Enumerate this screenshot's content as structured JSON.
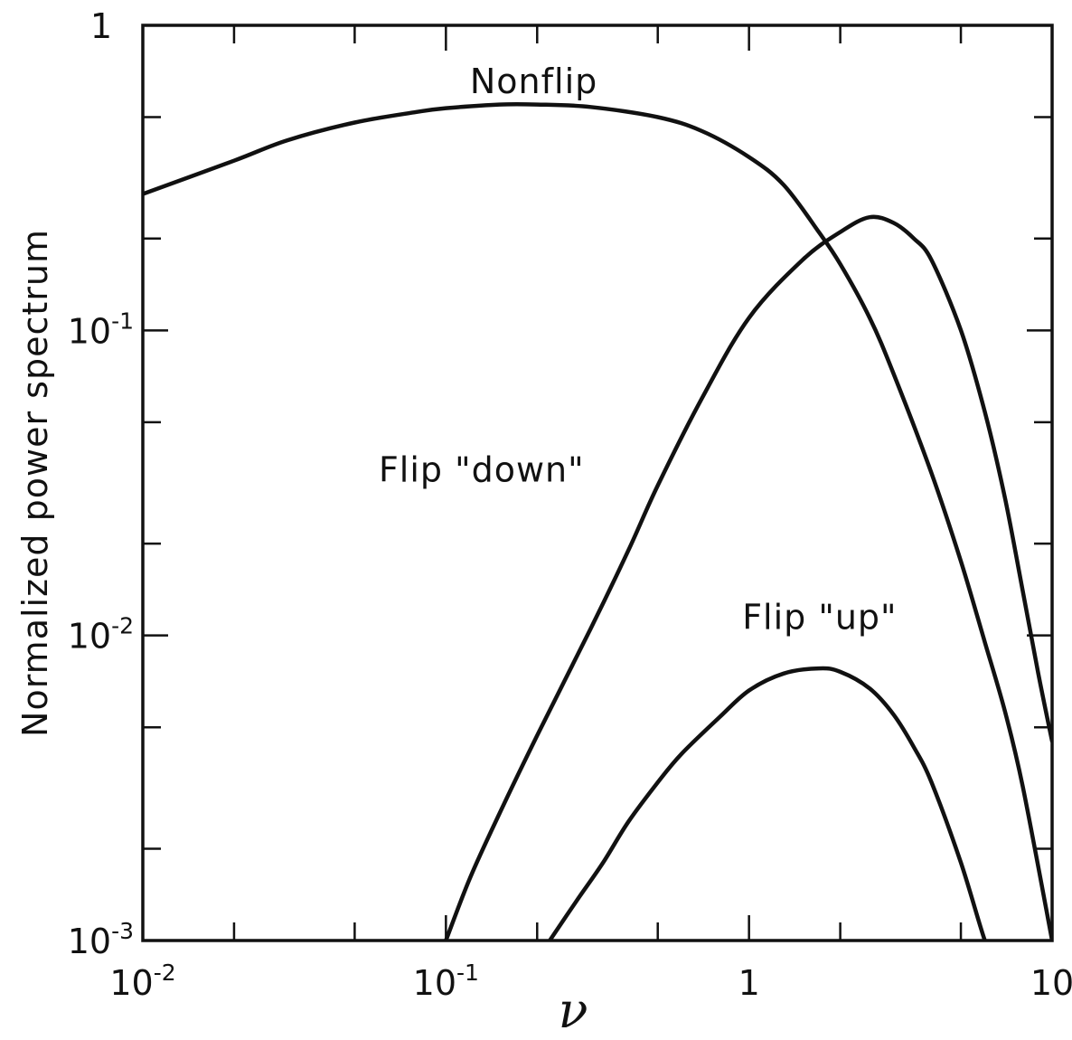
{
  "chart_data": {
    "type": "line",
    "xlabel": "ν",
    "ylabel": "Normalized power spectrum",
    "xscale": "log",
    "yscale": "log",
    "xlim": [
      0.01,
      10
    ],
    "ylim": [
      0.001,
      1
    ],
    "grid": false,
    "legend": "none (curves labeled directly)",
    "xticks": [
      {
        "value": 0.01,
        "base": "10",
        "exp": "-2"
      },
      {
        "value": 0.1,
        "base": "10",
        "exp": "-1"
      },
      {
        "value": 1,
        "base": "1",
        "exp": ""
      },
      {
        "value": 10,
        "base": "10",
        "exp": ""
      }
    ],
    "yticks": [
      {
        "value": 1,
        "base": "1",
        "exp": ""
      },
      {
        "value": 0.1,
        "base": "10",
        "exp": "-1"
      },
      {
        "value": 0.01,
        "base": "10",
        "exp": "-2"
      },
      {
        "value": 0.001,
        "base": "10",
        "exp": "-3"
      }
    ],
    "series": [
      {
        "name": "Nonflip",
        "label_at": [
          0.12,
          0.6
        ],
        "x": [
          0.01,
          0.02,
          0.03,
          0.05,
          0.08,
          0.1,
          0.15,
          0.2,
          0.3,
          0.5,
          0.7,
          1.0,
          1.3,
          1.7,
          2.0,
          2.5,
          3.0,
          4.0,
          5.0,
          6.0,
          7.0,
          8.0,
          10.0
        ],
        "y": [
          0.28,
          0.36,
          0.42,
          0.48,
          0.52,
          0.535,
          0.55,
          0.55,
          0.54,
          0.5,
          0.45,
          0.37,
          0.3,
          0.21,
          0.165,
          0.11,
          0.072,
          0.034,
          0.0175,
          0.0095,
          0.0056,
          0.0032,
          0.001
        ]
      },
      {
        "name": "Flip \"down\"",
        "label_at": [
          0.06,
          0.032
        ],
        "x": [
          0.1,
          0.12,
          0.15,
          0.2,
          0.3,
          0.4,
          0.5,
          0.7,
          1.0,
          1.5,
          2.0,
          2.5,
          3.0,
          3.5,
          4.0,
          5.0,
          6.0,
          7.0,
          8.0,
          9.0,
          10.0
        ],
        "y": [
          0.001,
          0.0016,
          0.0026,
          0.0047,
          0.0105,
          0.019,
          0.031,
          0.06,
          0.11,
          0.17,
          0.21,
          0.235,
          0.225,
          0.2,
          0.17,
          0.1,
          0.054,
          0.028,
          0.014,
          0.0075,
          0.0045
        ]
      },
      {
        "name": "Flip \"up\"",
        "label_at": [
          0.95,
          0.0105
        ],
        "x": [
          0.22,
          0.27,
          0.33,
          0.4,
          0.5,
          0.6,
          0.8,
          1.0,
          1.3,
          1.7,
          2.0,
          2.5,
          3.0,
          3.5,
          4.0,
          5.0,
          6.0,
          6.5
        ],
        "y": [
          0.001,
          0.00135,
          0.0018,
          0.00245,
          0.0033,
          0.0041,
          0.0054,
          0.0066,
          0.0075,
          0.0078,
          0.0076,
          0.0067,
          0.0055,
          0.0043,
          0.0033,
          0.0018,
          0.001,
          0.00085
        ]
      }
    ]
  }
}
